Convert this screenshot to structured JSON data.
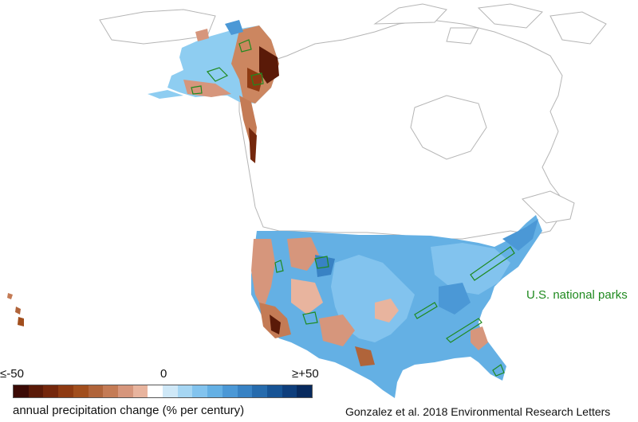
{
  "map": {
    "parks_label": "U.S. national parks",
    "credit": "Gonzalez et al. 2018 Environmental Research Letters",
    "park_outline_color": "#1f8a1f",
    "coastline_color": "#b5b5b5"
  },
  "legend": {
    "min_label": "≤-50",
    "zero_label": "0",
    "max_label": "≥+50",
    "title": "annual precipitation change (% per century)",
    "colors": [
      "#3b0a05",
      "#5a1a08",
      "#74270c",
      "#8e3a12",
      "#a14e1d",
      "#b0643a",
      "#c47b55",
      "#d6967c",
      "#e8b49e",
      "#ffffff",
      "#cfe8f7",
      "#a6d6f3",
      "#82c3ee",
      "#64b0e4",
      "#4b98d6",
      "#3882c4",
      "#266bad",
      "#175495",
      "#0e3e7c",
      "#082a5e"
    ]
  }
}
